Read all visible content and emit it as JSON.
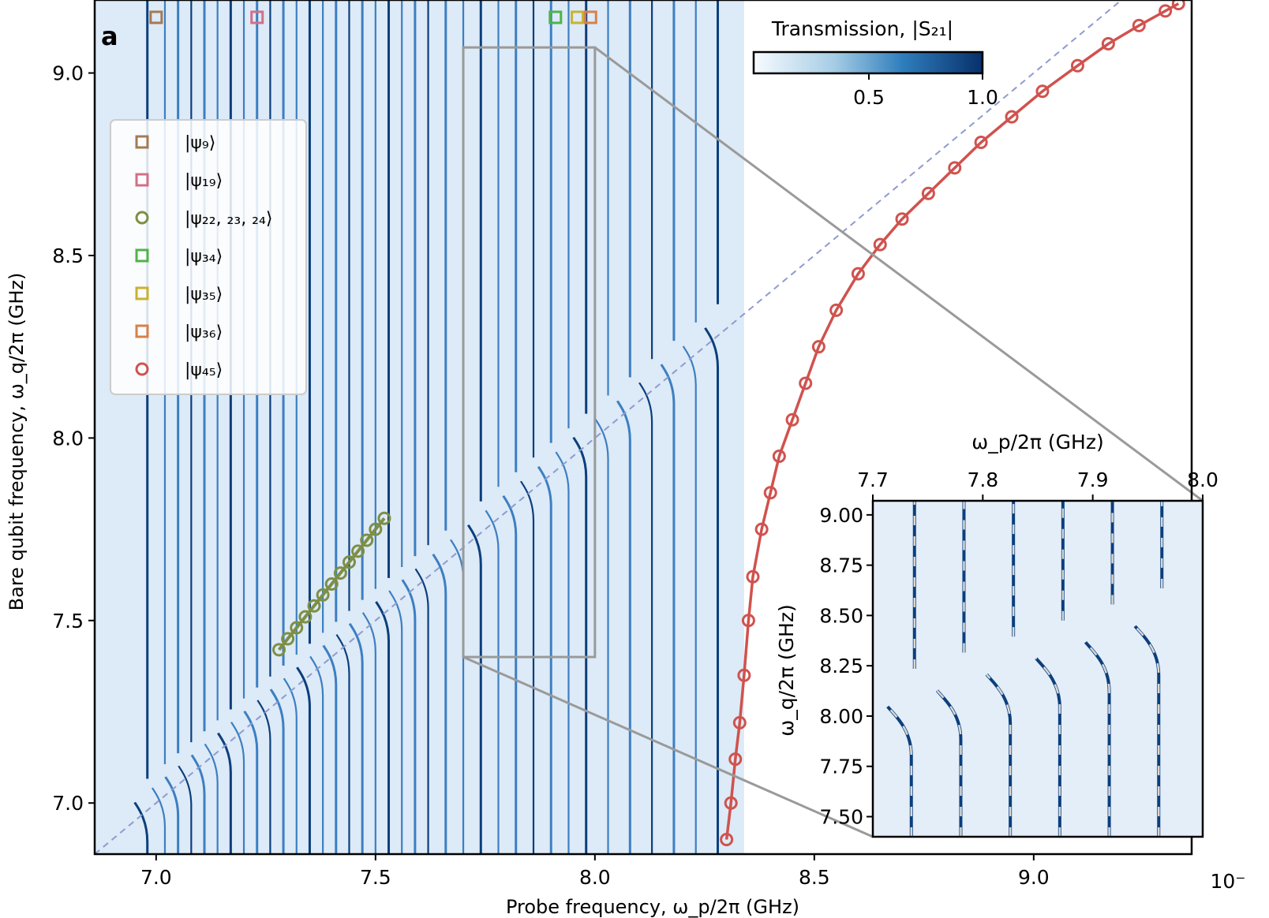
{
  "panel_label": "a",
  "colors": {
    "heatmap_bg": "#ddeaf7",
    "heatmap_light": "#e9f1fa",
    "line_dark": "#0b3f7d",
    "line_mid": "#3c7fc2",
    "red": "#d0524e",
    "olive": "#7d8f45",
    "dashed": "#8e9bd0",
    "zoom": "#9a9a9a"
  },
  "chart_data": [
    {
      "type": "heatmap",
      "title": "",
      "xlabel": "Probe frequency, ω_p/2π (GHz)",
      "ylabel": "Bare qubit frequency, ω_q/2π (GHz)",
      "xlim": [
        6.86,
        9.36
      ],
      "ylim": [
        6.86,
        9.2
      ],
      "xticks": [
        "7.0",
        "7.5",
        "8.0",
        "8.5",
        "9.0"
      ],
      "yticks": [
        "7.0",
        "7.5",
        "8.0",
        "8.5",
        "9.0"
      ],
      "x_offset_text": "10⁻",
      "heatmap_xrange": [
        6.86,
        8.34
      ],
      "resonances": [
        6.98,
        7.02,
        7.05,
        7.08,
        7.11,
        7.14,
        7.17,
        7.2,
        7.23,
        7.26,
        7.29,
        7.32,
        7.35,
        7.38,
        7.41,
        7.44,
        7.47,
        7.5,
        7.53,
        7.56,
        7.59,
        7.62,
        7.66,
        7.7,
        7.74,
        7.78,
        7.82,
        7.86,
        7.9,
        7.94,
        7.98,
        8.03,
        8.08,
        8.13,
        8.18,
        8.23,
        8.28
      ],
      "colorbar": {
        "label": "Transmission, |S₂₁|",
        "ticks": [
          "0.5",
          "1.0"
        ],
        "range": [
          0,
          1
        ]
      },
      "legend": {
        "placement": "upper-left",
        "entries": [
          {
            "label": "|ψ₉⟩",
            "marker": "square",
            "color": "#a47a54"
          },
          {
            "label": "|ψ₁₉⟩",
            "marker": "square",
            "color": "#d36f88"
          },
          {
            "label": "|ψ₂₂, ₂₃, ₂₄⟩",
            "marker": "circle",
            "color": "#7d8f45"
          },
          {
            "label": "|ψ₃₄⟩",
            "marker": "square",
            "color": "#4fb34a"
          },
          {
            "label": "|ψ₃₅⟩",
            "marker": "square",
            "color": "#c8b232"
          },
          {
            "label": "|ψ₃₆⟩",
            "marker": "square",
            "color": "#d9804a"
          },
          {
            "label": "|ψ₄₅⟩",
            "marker": "circle",
            "color": "#d0524e"
          }
        ]
      },
      "top_markers": [
        {
          "x": 7.0,
          "color": "#a47a54"
        },
        {
          "x": 7.23,
          "color": "#d36f88"
        },
        {
          "x": 7.91,
          "color": "#4fb34a"
        },
        {
          "x": 7.96,
          "color": "#c8b232"
        },
        {
          "x": 7.99,
          "color": "#d9804a"
        }
      ],
      "series": [
        {
          "name": "|ψ₄₅⟩",
          "marker": "circle",
          "x": [
            8.3,
            8.31,
            8.32,
            8.33,
            8.34,
            8.35,
            8.36,
            8.38,
            8.4,
            8.42,
            8.45,
            8.48,
            8.51,
            8.55,
            8.6,
            8.65,
            8.7,
            8.76,
            8.82,
            8.88,
            8.95,
            9.02,
            9.1,
            9.17,
            9.24,
            9.3,
            9.33
          ],
          "y": [
            6.9,
            7.0,
            7.12,
            7.22,
            7.35,
            7.5,
            7.62,
            7.75,
            7.85,
            7.95,
            8.05,
            8.15,
            8.25,
            8.35,
            8.45,
            8.53,
            8.6,
            8.67,
            8.74,
            8.81,
            8.88,
            8.95,
            9.02,
            9.08,
            9.13,
            9.17,
            9.19
          ]
        },
        {
          "name": "|ψ₂₂, ₂₃, ₂₄⟩",
          "marker": "circle",
          "x": [
            7.28,
            7.3,
            7.32,
            7.34,
            7.36,
            7.38,
            7.4,
            7.42,
            7.44,
            7.46,
            7.48,
            7.5,
            7.52
          ],
          "y": [
            7.42,
            7.45,
            7.48,
            7.51,
            7.54,
            7.57,
            7.6,
            7.63,
            7.66,
            7.69,
            7.72,
            7.75,
            7.78
          ]
        }
      ],
      "diagonal": {
        "x": [
          6.86,
          9.36
        ],
        "y": [
          6.86,
          9.36
        ],
        "style": "dashed"
      },
      "zoom_box": {
        "x": [
          7.7,
          8.0
        ],
        "y": [
          7.4,
          9.07
        ]
      }
    },
    {
      "type": "heatmap",
      "title": "",
      "xlabel": "ω_p/2π (GHz)",
      "ylabel": "ω_q/2π (GHz)",
      "xlim": [
        7.7,
        8.0
      ],
      "ylim": [
        7.4,
        9.07
      ],
      "xticks": [
        "7.7",
        "7.8",
        "7.9",
        "8.0"
      ],
      "yticks": [
        "7.50",
        "7.75",
        "8.00",
        "8.25",
        "8.50",
        "8.75",
        "9.00"
      ],
      "resonances": [
        7.735,
        7.78,
        7.825,
        7.87,
        7.915,
        7.96
      ]
    }
  ]
}
